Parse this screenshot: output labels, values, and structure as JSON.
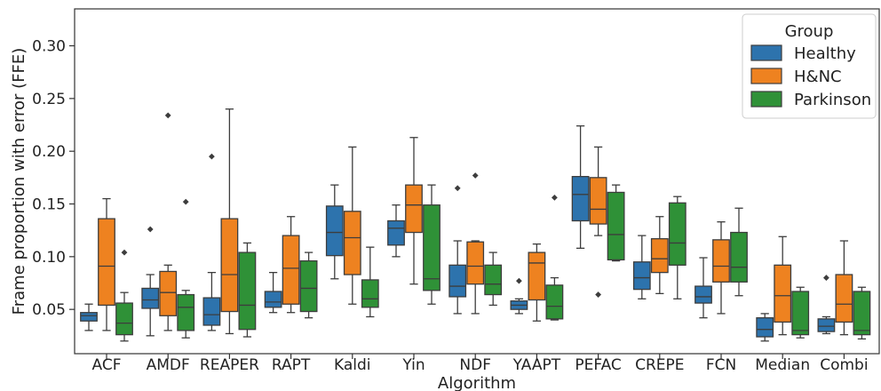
{
  "chart_data": {
    "type": "box",
    "xlabel": "Algorithm",
    "ylabel": "Frame proportion with error (FFE)",
    "ylim": [
      0.008,
      0.335
    ],
    "yticks": [
      0.05,
      0.1,
      0.15,
      0.2,
      0.25,
      0.3
    ],
    "ytick_labels": [
      "0.05",
      "0.10",
      "0.15",
      "0.20",
      "0.25",
      "0.30"
    ],
    "categories": [
      "ACF",
      "AMDF",
      "REAPER",
      "RAPT",
      "Kaldi",
      "Yin",
      "NDF",
      "YAAPT",
      "PEFAC",
      "CREPE",
      "FCN",
      "Median",
      "Combi"
    ],
    "grid": false,
    "legend": {
      "title": "Group",
      "position": "top-right"
    },
    "series": [
      {
        "name": "Healthy",
        "color": "#2d73ad",
        "boxes": [
          {
            "whislo": 0.03,
            "q1": 0.039,
            "med": 0.044,
            "q3": 0.047,
            "whishi": 0.055,
            "fliers": []
          },
          {
            "whislo": 0.025,
            "q1": 0.051,
            "med": 0.059,
            "q3": 0.07,
            "whishi": 0.083,
            "fliers": [
              0.126
            ]
          },
          {
            "whislo": 0.03,
            "q1": 0.035,
            "med": 0.045,
            "q3": 0.061,
            "whishi": 0.085,
            "fliers": [
              0.195
            ]
          },
          {
            "whislo": 0.047,
            "q1": 0.052,
            "med": 0.057,
            "q3": 0.067,
            "whishi": 0.085,
            "fliers": []
          },
          {
            "whislo": 0.079,
            "q1": 0.101,
            "med": 0.123,
            "q3": 0.148,
            "whishi": 0.168,
            "fliers": []
          },
          {
            "whislo": 0.1,
            "q1": 0.111,
            "med": 0.127,
            "q3": 0.134,
            "whishi": 0.149,
            "fliers": []
          },
          {
            "whislo": 0.046,
            "q1": 0.062,
            "med": 0.072,
            "q3": 0.092,
            "whishi": 0.115,
            "fliers": [
              0.165
            ]
          },
          {
            "whislo": 0.046,
            "q1": 0.05,
            "med": 0.054,
            "q3": 0.058,
            "whishi": 0.06,
            "fliers": [
              0.077
            ]
          },
          {
            "whislo": 0.108,
            "q1": 0.134,
            "med": 0.159,
            "q3": 0.176,
            "whishi": 0.224,
            "fliers": []
          },
          {
            "whislo": 0.06,
            "q1": 0.069,
            "med": 0.08,
            "q3": 0.095,
            "whishi": 0.12,
            "fliers": []
          },
          {
            "whislo": 0.042,
            "q1": 0.056,
            "med": 0.062,
            "q3": 0.072,
            "whishi": 0.099,
            "fliers": []
          },
          {
            "whislo": 0.02,
            "q1": 0.024,
            "med": 0.031,
            "q3": 0.042,
            "whishi": 0.046,
            "fliers": []
          },
          {
            "whislo": 0.027,
            "q1": 0.029,
            "med": 0.034,
            "q3": 0.041,
            "whishi": 0.043,
            "fliers": [
              0.08
            ]
          }
        ]
      },
      {
        "name": "H&NC",
        "color": "#ee8220",
        "boxes": [
          {
            "whislo": 0.03,
            "q1": 0.054,
            "med": 0.091,
            "q3": 0.136,
            "whishi": 0.155,
            "fliers": []
          },
          {
            "whislo": 0.03,
            "q1": 0.044,
            "med": 0.066,
            "q3": 0.086,
            "whishi": 0.092,
            "fliers": [
              0.234
            ]
          },
          {
            "whislo": 0.027,
            "q1": 0.048,
            "med": 0.083,
            "q3": 0.136,
            "whishi": 0.24,
            "fliers": []
          },
          {
            "whislo": 0.047,
            "q1": 0.055,
            "med": 0.089,
            "q3": 0.12,
            "whishi": 0.138,
            "fliers": []
          },
          {
            "whislo": 0.055,
            "q1": 0.083,
            "med": 0.118,
            "q3": 0.143,
            "whishi": 0.204,
            "fliers": []
          },
          {
            "whislo": 0.074,
            "q1": 0.123,
            "med": 0.149,
            "q3": 0.168,
            "whishi": 0.213,
            "fliers": []
          },
          {
            "whislo": 0.046,
            "q1": 0.074,
            "med": 0.091,
            "q3": 0.114,
            "whishi": 0.115,
            "fliers": [
              0.177
            ]
          },
          {
            "whislo": 0.039,
            "q1": 0.059,
            "med": 0.094,
            "q3": 0.104,
            "whishi": 0.112,
            "fliers": []
          },
          {
            "whislo": 0.12,
            "q1": 0.131,
            "med": 0.145,
            "q3": 0.175,
            "whishi": 0.204,
            "fliers": [
              0.064
            ]
          },
          {
            "whislo": 0.065,
            "q1": 0.085,
            "med": 0.098,
            "q3": 0.117,
            "whishi": 0.138,
            "fliers": []
          },
          {
            "whislo": 0.046,
            "q1": 0.076,
            "med": 0.091,
            "q3": 0.116,
            "whishi": 0.133,
            "fliers": []
          },
          {
            "whislo": 0.026,
            "q1": 0.038,
            "med": 0.063,
            "q3": 0.092,
            "whishi": 0.119,
            "fliers": []
          },
          {
            "whislo": 0.026,
            "q1": 0.038,
            "med": 0.055,
            "q3": 0.083,
            "whishi": 0.115,
            "fliers": []
          }
        ]
      },
      {
        "name": "Parkinson",
        "color": "#2f9137",
        "boxes": [
          {
            "whislo": 0.02,
            "q1": 0.026,
            "med": 0.037,
            "q3": 0.056,
            "whishi": 0.066,
            "fliers": [
              0.104
            ]
          },
          {
            "whislo": 0.023,
            "q1": 0.03,
            "med": 0.052,
            "q3": 0.064,
            "whishi": 0.068,
            "fliers": [
              0.152
            ]
          },
          {
            "whislo": 0.024,
            "q1": 0.031,
            "med": 0.054,
            "q3": 0.104,
            "whishi": 0.113,
            "fliers": []
          },
          {
            "whislo": 0.042,
            "q1": 0.048,
            "med": 0.07,
            "q3": 0.096,
            "whishi": 0.104,
            "fliers": []
          },
          {
            "whislo": 0.043,
            "q1": 0.052,
            "med": 0.06,
            "q3": 0.078,
            "whishi": 0.109,
            "fliers": []
          },
          {
            "whislo": 0.055,
            "q1": 0.068,
            "med": 0.079,
            "q3": 0.149,
            "whishi": 0.168,
            "fliers": []
          },
          {
            "whislo": 0.054,
            "q1": 0.064,
            "med": 0.074,
            "q3": 0.092,
            "whishi": 0.104,
            "fliers": []
          },
          {
            "whislo": 0.04,
            "q1": 0.041,
            "med": 0.053,
            "q3": 0.073,
            "whishi": 0.08,
            "fliers": [
              0.156
            ]
          },
          {
            "whislo": 0.096,
            "q1": 0.097,
            "med": 0.121,
            "q3": 0.161,
            "whishi": 0.168,
            "fliers": []
          },
          {
            "whislo": 0.06,
            "q1": 0.092,
            "med": 0.113,
            "q3": 0.151,
            "whishi": 0.157,
            "fliers": []
          },
          {
            "whislo": 0.063,
            "q1": 0.076,
            "med": 0.09,
            "q3": 0.123,
            "whishi": 0.146,
            "fliers": []
          },
          {
            "whislo": 0.023,
            "q1": 0.026,
            "med": 0.03,
            "q3": 0.067,
            "whishi": 0.071,
            "fliers": []
          },
          {
            "whislo": 0.022,
            "q1": 0.026,
            "med": 0.03,
            "q3": 0.067,
            "whishi": 0.071,
            "fliers": []
          }
        ]
      }
    ]
  }
}
